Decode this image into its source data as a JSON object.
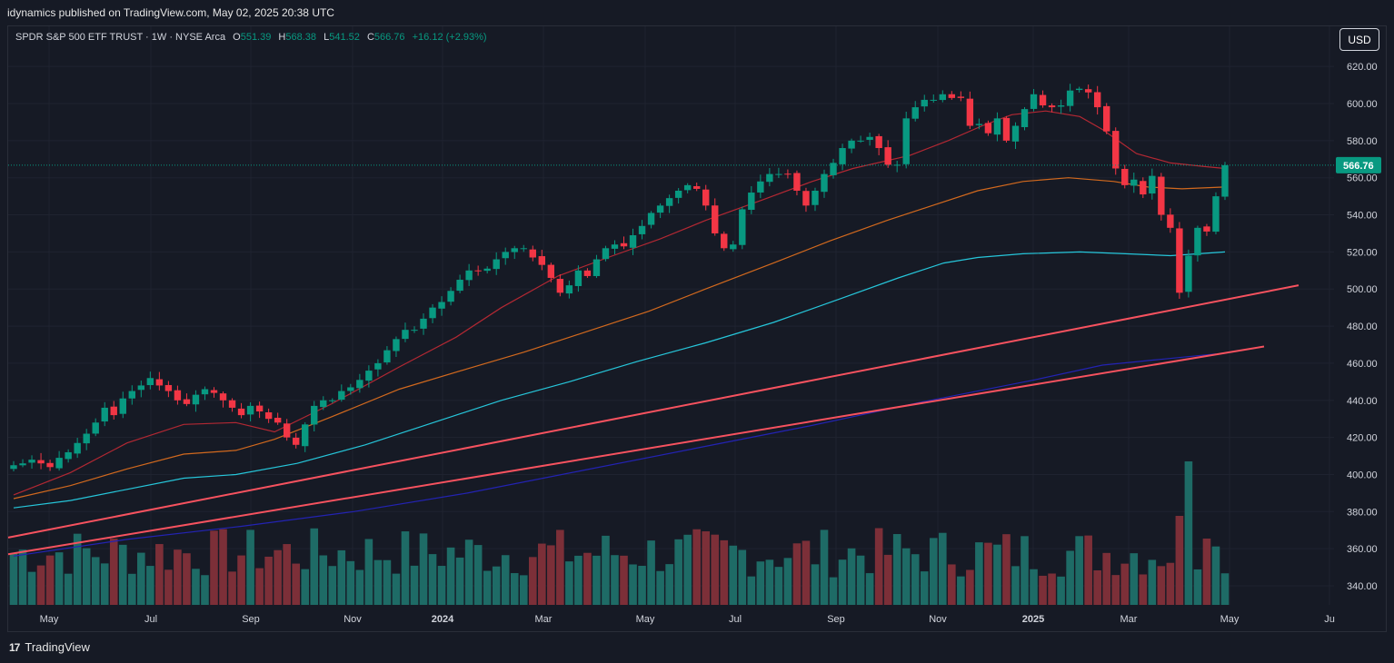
{
  "header": {
    "caption": "idynamics published on TradingView.com, May 02, 2025 20:38 UTC"
  },
  "legend": {
    "symbol": "SPDR S&P 500 ETF TRUST · 1W · NYSE Arca",
    "open_label": "O",
    "open": "551.39",
    "high_label": "H",
    "high": "568.38",
    "low_label": "L",
    "low": "541.52",
    "close_label": "C",
    "close": "566.76",
    "change": "+16.12 (+2.93%)"
  },
  "currency_button": "USD",
  "footer": {
    "brand": "TradingView",
    "logo_glyph": "17"
  },
  "colors": {
    "background": "#161a25",
    "up": "#089981",
    "down": "#f23645",
    "vol_up": "#1e6b66",
    "vol_down": "#7c2f38",
    "ma_fast": "#b22833",
    "ma_mid": "#d2691e",
    "ma_slow": "#26c6da",
    "trendline": "#f7525f",
    "ma_long": "#2323b3"
  },
  "chart_data": {
    "type": "candlestick",
    "timeframe": "1W",
    "x_axis_ticks": [
      "May",
      "Jul",
      "Sep",
      "Nov",
      "2024",
      "Mar",
      "May",
      "Jul",
      "Sep",
      "Nov",
      "2025",
      "Mar",
      "May",
      "Ju"
    ],
    "y_axis_ticks": [
      620,
      600,
      580,
      560,
      540,
      520,
      500,
      480,
      460,
      440,
      420,
      400,
      380,
      360,
      340
    ],
    "ylim": [
      330,
      628
    ],
    "last_price": 566.76,
    "last_price_label": "566.76",
    "candle_closes": [
      405,
      406,
      408,
      406,
      404,
      409,
      412,
      417,
      422,
      428,
      436,
      432,
      441,
      445,
      448,
      452,
      448,
      445,
      440,
      438,
      443,
      446,
      444,
      440,
      436,
      432,
      437,
      434,
      430,
      428,
      420,
      416,
      427,
      437,
      440,
      440,
      445,
      447,
      451,
      456,
      460,
      467,
      473,
      478,
      478,
      484,
      490,
      493,
      499,
      505,
      510,
      510,
      511,
      516,
      520,
      522,
      522,
      517,
      513,
      506,
      498,
      502,
      510,
      507,
      516,
      522,
      524,
      523,
      529,
      534,
      541,
      545,
      549,
      553,
      556,
      554,
      545,
      530,
      522,
      524,
      543,
      552,
      558,
      562,
      562,
      562,
      553,
      545,
      553,
      562,
      568,
      576,
      580,
      580,
      582,
      576,
      567,
      567,
      592,
      598,
      602,
      602,
      605,
      603,
      603,
      588,
      589,
      584,
      592,
      580,
      588,
      597,
      605,
      599,
      598,
      599,
      607,
      608,
      606,
      598,
      585,
      565,
      556,
      559,
      551,
      561,
      540,
      533,
      498,
      518,
      533,
      531,
      550,
      566.76
    ],
    "ma_fast": [
      [
        0,
        389
      ],
      [
        25,
        401
      ],
      [
        50,
        417
      ],
      [
        75,
        427
      ],
      [
        98,
        428
      ],
      [
        115,
        423
      ],
      [
        140,
        438
      ],
      [
        170,
        458
      ],
      [
        195,
        474
      ],
      [
        215,
        490
      ],
      [
        240,
        507
      ],
      [
        262,
        517
      ],
      [
        285,
        527
      ],
      [
        305,
        537
      ],
      [
        330,
        548
      ],
      [
        352,
        558
      ],
      [
        370,
        565
      ],
      [
        395,
        572
      ],
      [
        412,
        580
      ],
      [
        427,
        588
      ],
      [
        440,
        594
      ],
      [
        455,
        596
      ],
      [
        470,
        593
      ],
      [
        480,
        586
      ],
      [
        495,
        573
      ],
      [
        510,
        568
      ],
      [
        525,
        566
      ],
      [
        534,
        565
      ]
    ],
    "ma_mid": [
      [
        0,
        387
      ],
      [
        25,
        394
      ],
      [
        50,
        403
      ],
      [
        75,
        411
      ],
      [
        98,
        413
      ],
      [
        115,
        419
      ],
      [
        140,
        431
      ],
      [
        170,
        446
      ],
      [
        200,
        457
      ],
      [
        225,
        466
      ],
      [
        255,
        478
      ],
      [
        280,
        488
      ],
      [
        305,
        500
      ],
      [
        335,
        514
      ],
      [
        360,
        526
      ],
      [
        385,
        537
      ],
      [
        405,
        545
      ],
      [
        425,
        553
      ],
      [
        445,
        558
      ],
      [
        465,
        560
      ],
      [
        485,
        558
      ],
      [
        500,
        555
      ],
      [
        515,
        554
      ],
      [
        534,
        555
      ]
    ],
    "ma_slow": [
      [
        0,
        382
      ],
      [
        25,
        386
      ],
      [
        50,
        392
      ],
      [
        75,
        398
      ],
      [
        98,
        400
      ],
      [
        125,
        406
      ],
      [
        155,
        416
      ],
      [
        185,
        428
      ],
      [
        215,
        440
      ],
      [
        245,
        450
      ],
      [
        275,
        461
      ],
      [
        305,
        471
      ],
      [
        335,
        482
      ],
      [
        365,
        495
      ],
      [
        390,
        506
      ],
      [
        410,
        514
      ],
      [
        425,
        517
      ],
      [
        445,
        519
      ],
      [
        470,
        520
      ],
      [
        490,
        519
      ],
      [
        510,
        518
      ],
      [
        534,
        520
      ]
    ],
    "trendlines": [
      {
        "from": [
          0,
          366
        ],
        "to": [
          570,
          502
        ]
      },
      {
        "from": [
          0,
          357
        ],
        "to": [
          555,
          469
        ]
      }
    ],
    "ma_long": [
      [
        0,
        356
      ],
      [
        50,
        365
      ],
      [
        100,
        372
      ],
      [
        150,
        380
      ],
      [
        200,
        390
      ],
      [
        250,
        402
      ],
      [
        300,
        414
      ],
      [
        350,
        426
      ],
      [
        400,
        439
      ],
      [
        450,
        451
      ],
      [
        480,
        459
      ],
      [
        505,
        462
      ],
      [
        530,
        465
      ]
    ]
  }
}
